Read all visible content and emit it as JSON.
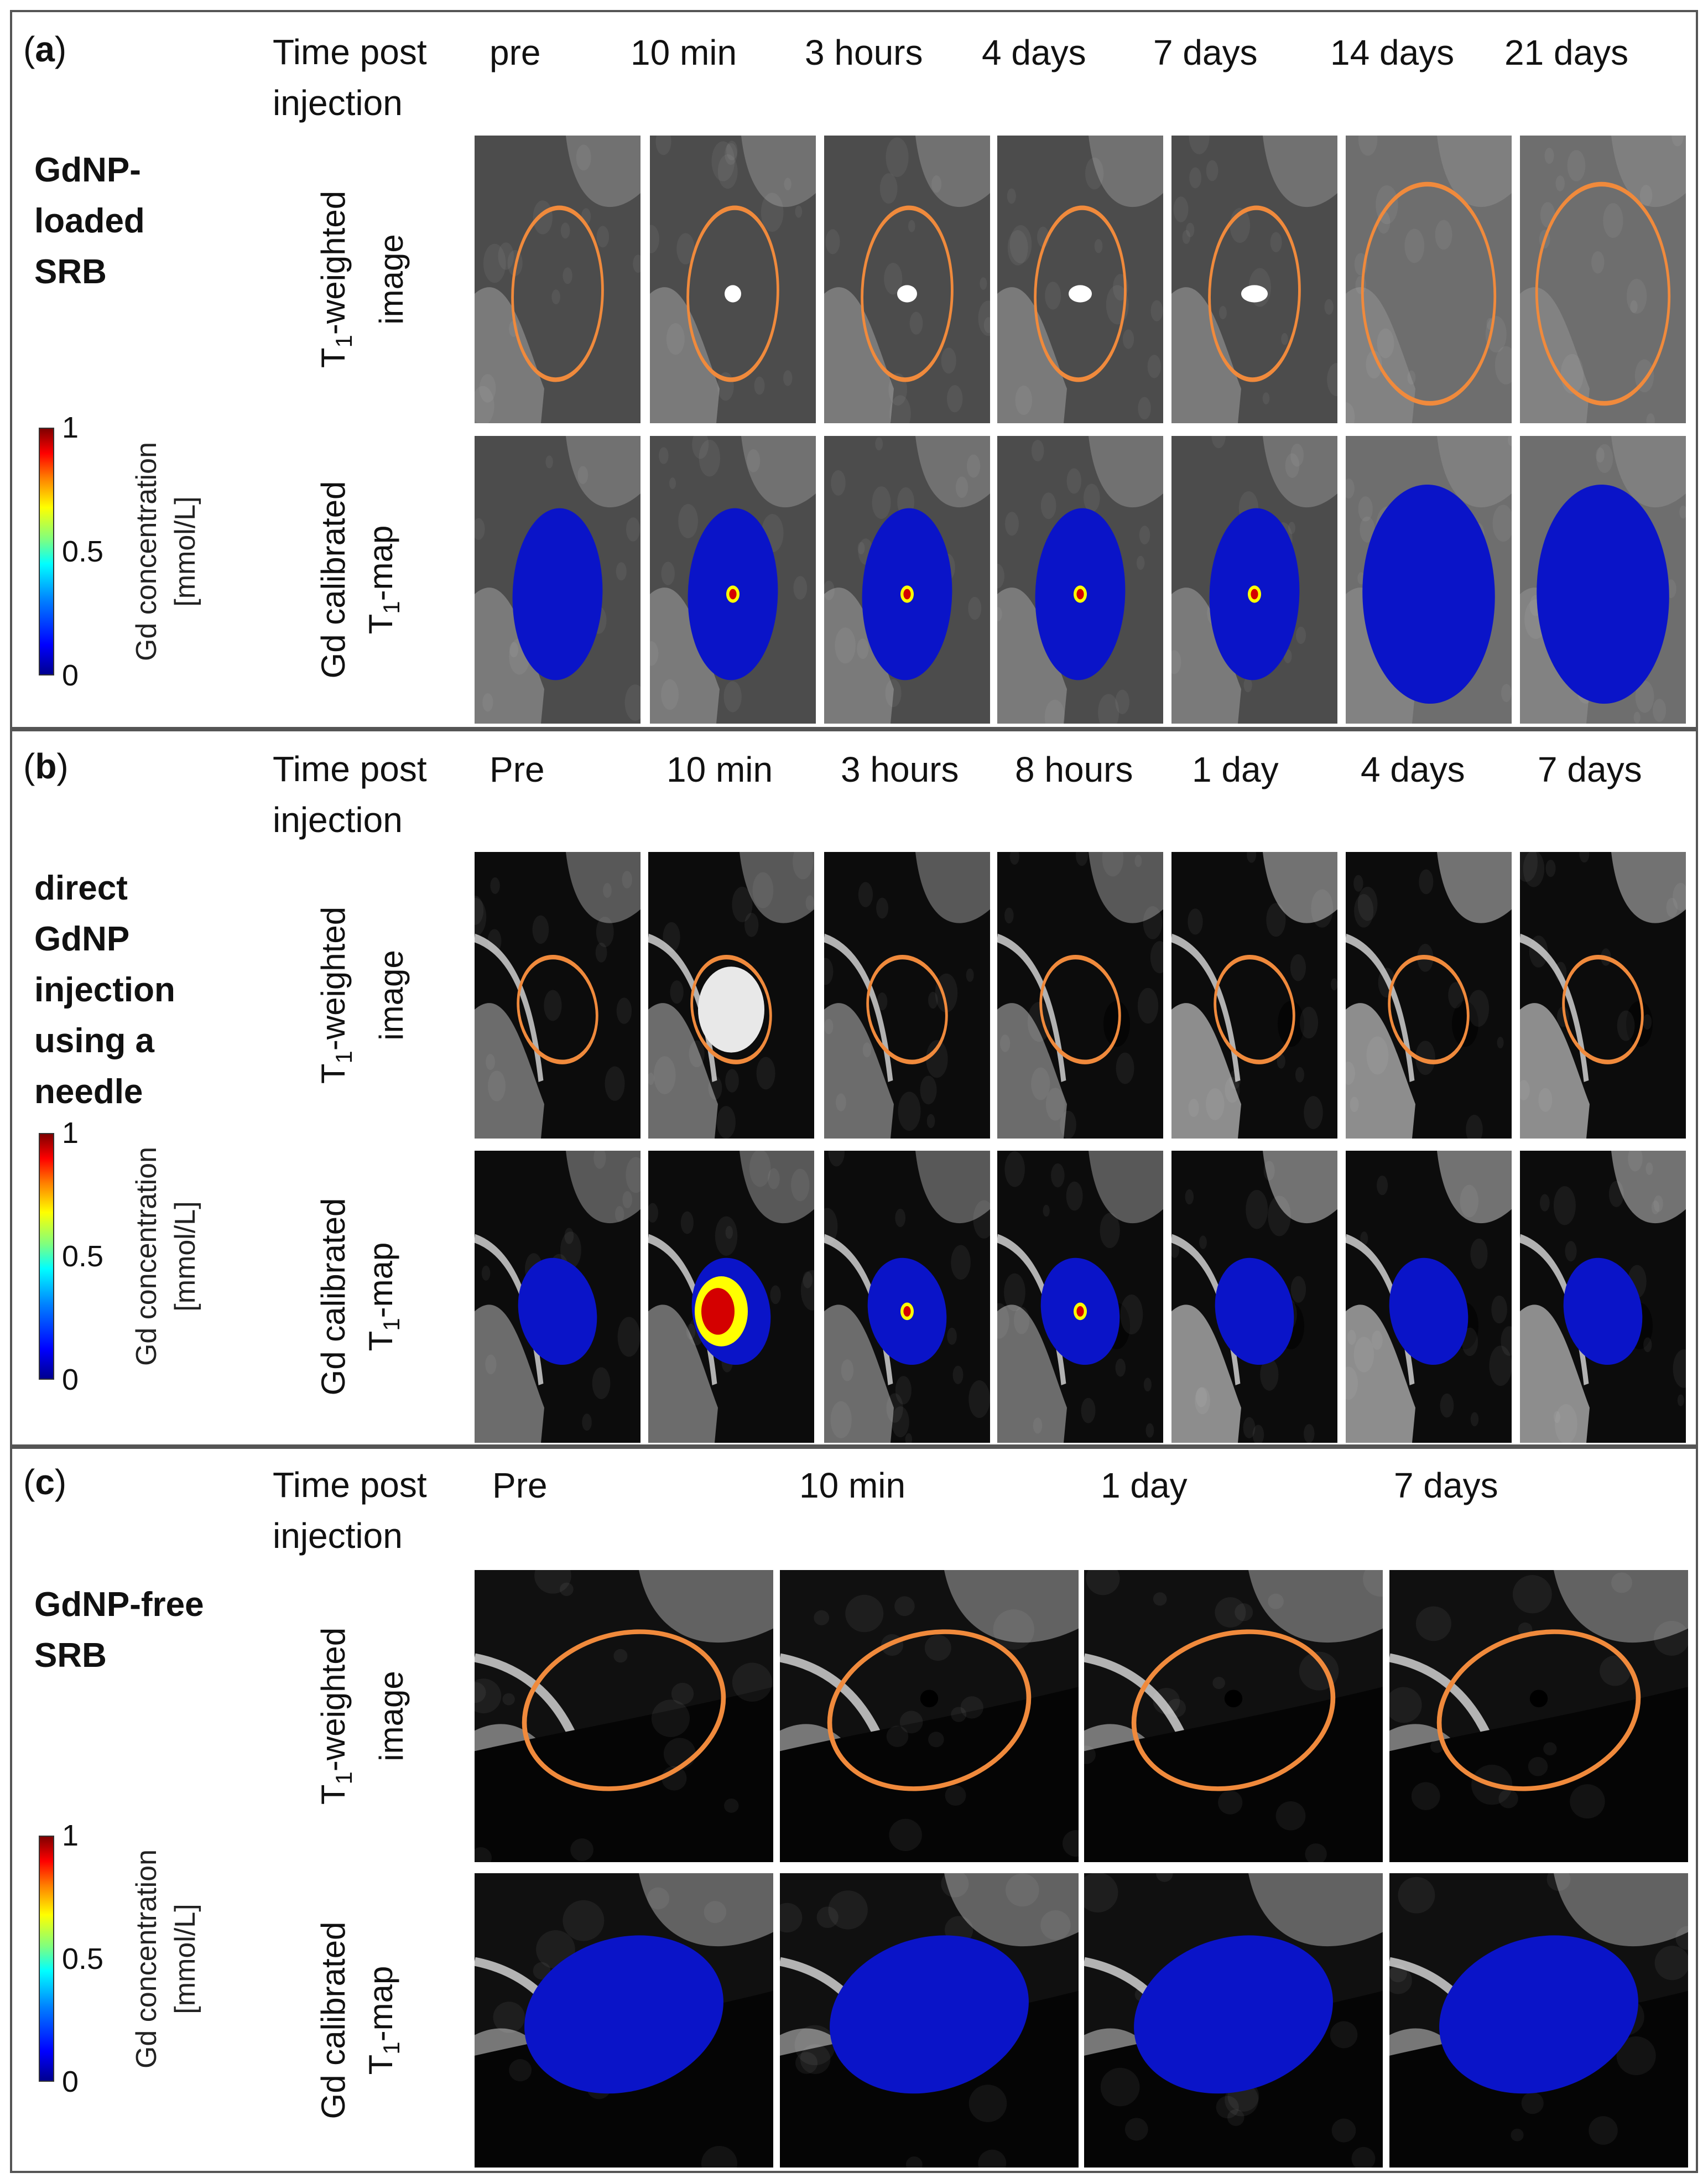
{
  "time_header": "Time post injection",
  "time_header_lines": [
    "Time post",
    "injection"
  ],
  "row_labels": {
    "t1": [
      "T1-weighted",
      "image"
    ],
    "gd": [
      "Gd calibrated",
      "T1-map"
    ]
  },
  "colorbar": {
    "title_lines": [
      "Gd concentration",
      "[mmol/L]"
    ],
    "ticks": [
      "1",
      "0.5",
      "0"
    ],
    "range": [
      0,
      1
    ]
  },
  "colors": {
    "outline": "#f08a3c",
    "map_low": "#0a14c8"
  },
  "panels": [
    {
      "label": "a",
      "condition": [
        "GdNP-",
        "loaded SRB"
      ],
      "times": [
        "pre",
        "10 min",
        "3 hours",
        "4 days",
        "7 days",
        "14 days",
        "21 days"
      ]
    },
    {
      "label": "b",
      "condition": [
        "direct",
        "GdNP",
        "injection",
        "using a",
        "needle"
      ],
      "times": [
        "Pre",
        "10 min",
        "3 hours",
        "8 hours",
        "1 day",
        "4 days",
        "7 days"
      ]
    },
    {
      "label": "c",
      "condition": [
        "GdNP-free",
        "SRB"
      ],
      "times": [
        "Pre",
        "10 min",
        "1 day",
        "7 days"
      ]
    }
  ]
}
